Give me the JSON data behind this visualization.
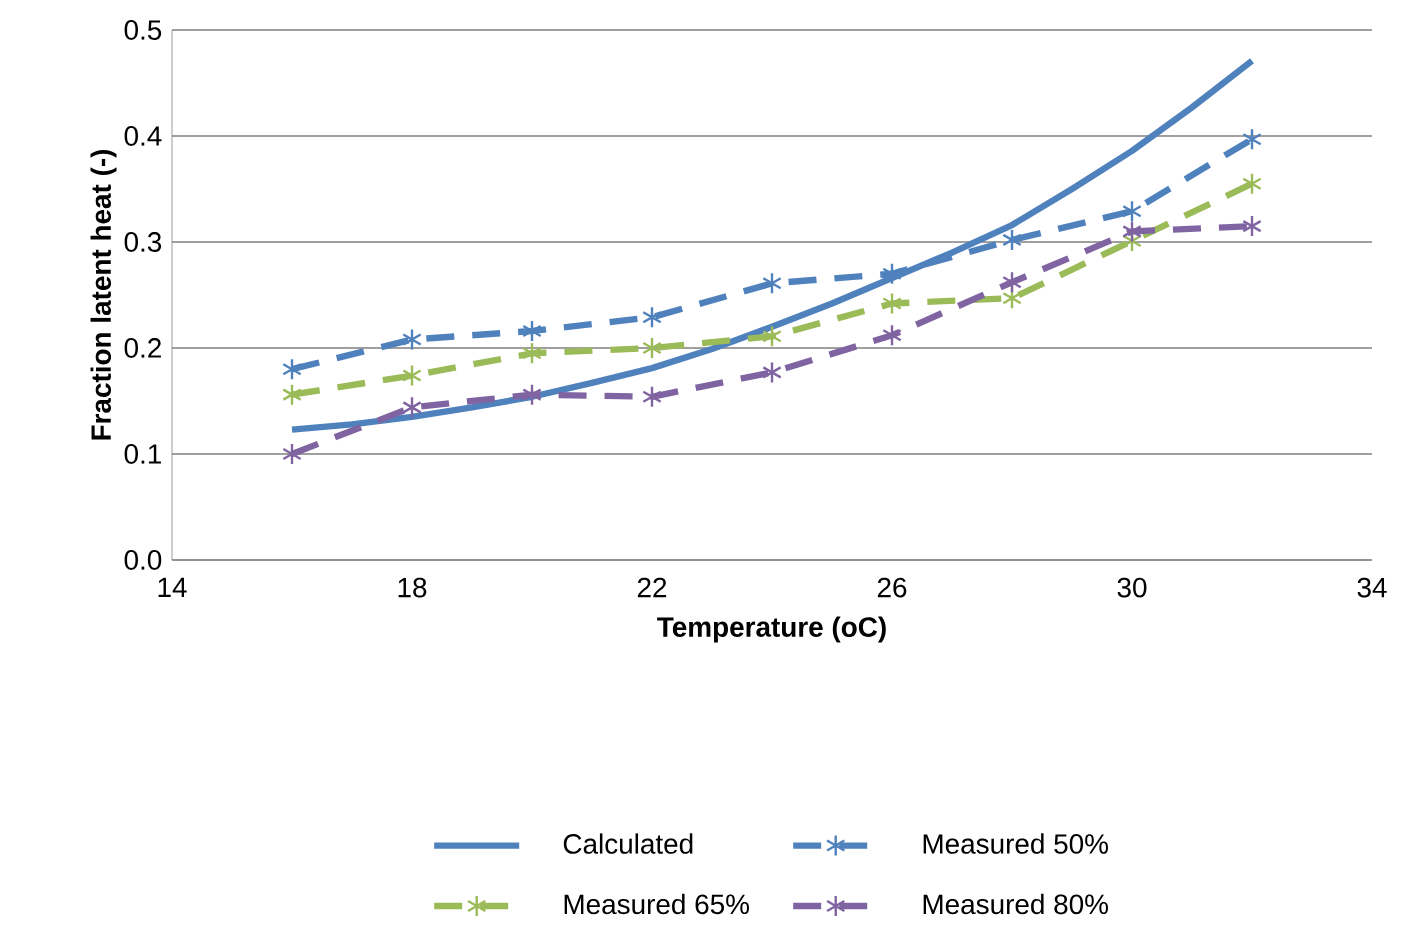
{
  "chart_data": {
    "type": "line",
    "xlabel": "Temperature (oC)",
    "ylabel": "Fraction latent heat (-)",
    "x": [
      16,
      18,
      20,
      22,
      24,
      26,
      28,
      30,
      32
    ],
    "series": [
      {
        "name": "Calculated",
        "color": "#4f81bd",
        "marker": "none",
        "line_style": "solid",
        "x": [
          16,
          17,
          18,
          19,
          20,
          21,
          22,
          23,
          24,
          25,
          26,
          27,
          28,
          29,
          30,
          31,
          32
        ],
        "values": [
          0.123,
          0.128,
          0.135,
          0.144,
          0.154,
          0.167,
          0.181,
          0.199,
          0.22,
          0.242,
          0.266,
          0.29,
          0.316,
          0.35,
          0.386,
          0.427,
          0.471
        ]
      },
      {
        "name": "Measured 50%",
        "color": "#4f81bd",
        "marker": "cross",
        "line_style": "dashed",
        "values": [
          0.18,
          0.208,
          0.216,
          0.229,
          0.261,
          0.27,
          0.302,
          0.329,
          0.397
        ]
      },
      {
        "name": "Measured 65%",
        "color": "#9bbb59",
        "marker": "cross",
        "line_style": "dashed",
        "values": [
          0.156,
          0.174,
          0.195,
          0.2,
          0.211,
          0.242,
          0.247,
          0.301,
          0.355
        ]
      },
      {
        "name": "Measured 80%",
        "color": "#8064a2",
        "marker": "cross",
        "line_style": "dashed",
        "values": [
          0.1,
          0.144,
          0.156,
          0.154,
          0.177,
          0.212,
          0.262,
          0.31,
          0.315
        ]
      }
    ],
    "xlim": [
      14,
      34
    ],
    "ylim": [
      0,
      0.5
    ],
    "xticks": [
      14,
      18,
      22,
      26,
      30,
      34
    ],
    "yticks": [
      {
        "value": 0,
        "label": "0.0"
      },
      {
        "value": 0.1,
        "label": "0.1"
      },
      {
        "value": 0.2,
        "label": "0.2"
      },
      {
        "value": 0.3,
        "label": "0.3"
      },
      {
        "value": 0.4,
        "label": "0.4"
      },
      {
        "value": 0.5,
        "label": "0.5"
      }
    ],
    "grid": "y",
    "legend": "bottom"
  }
}
